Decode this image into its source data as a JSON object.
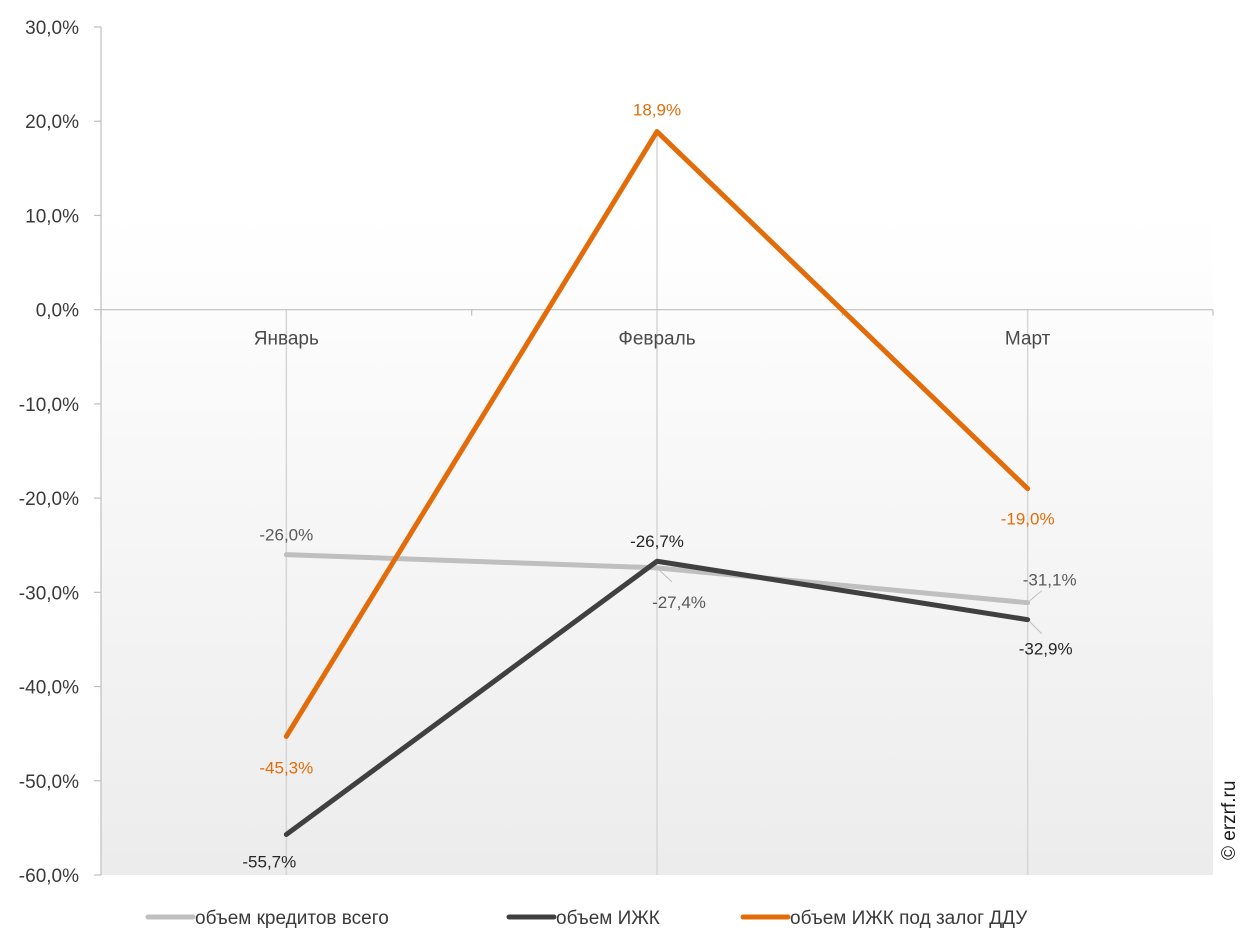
{
  "chart_data": {
    "type": "line",
    "categories": [
      "Январь",
      "Февраль",
      "Март"
    ],
    "ylim": [
      -60,
      30
    ],
    "ytick_step": 10,
    "y_tick_labels": [
      "30,0%",
      "20,0%",
      "10,0%",
      "0,0%",
      "-10,0%",
      "-20,0%",
      "-30,0%",
      "-40,0%",
      "-50,0%",
      "-60,0%"
    ],
    "grid": false,
    "legend_position": "bottom",
    "series": [
      {
        "name": "объем кредитов всего",
        "color": "#bfbfbf",
        "values": [
          -26.0,
          -27.4,
          -31.1
        ],
        "labels": [
          "-26,0%",
          "-27,4%",
          "-31,1%"
        ],
        "label_color": "#595959"
      },
      {
        "name": "объем ИЖК",
        "color": "#404040",
        "values": [
          -55.7,
          -26.7,
          -32.9
        ],
        "labels": [
          "-55,7%",
          "-26,7%",
          "-32,9%"
        ],
        "label_color": "#262626"
      },
      {
        "name": "объем ИЖК под залог ДДУ",
        "color": "#e36c0a",
        "values": [
          -45.3,
          18.9,
          -19.0
        ],
        "labels": [
          "-45,3%",
          "18,9%",
          "-19,0%"
        ],
        "label_color": "#e36c0a"
      }
    ]
  },
  "watermark": "© erzrf.ru"
}
